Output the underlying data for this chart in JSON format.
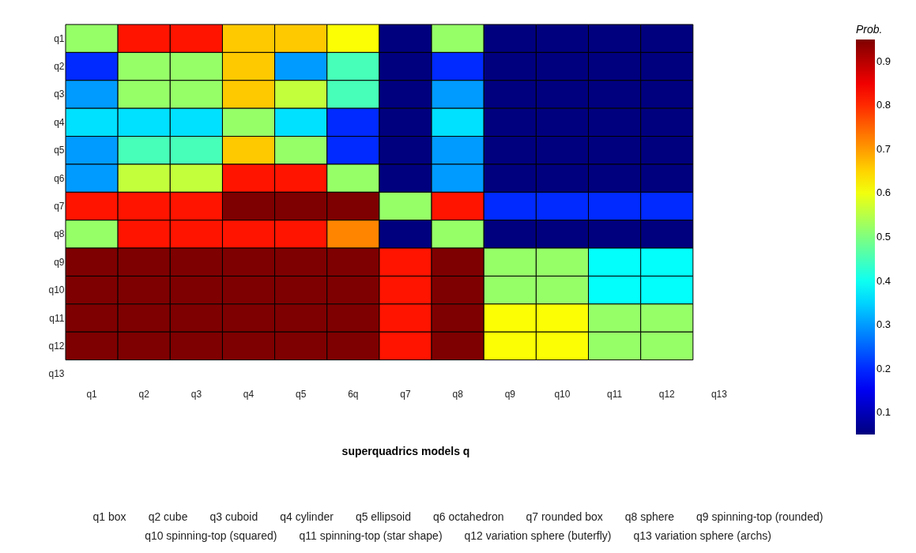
{
  "chart_data": {
    "type": "heatmap",
    "categories": [
      "q1",
      "q2",
      "q3",
      "q4",
      "q5",
      "6q",
      "q7",
      "q8",
      "q9",
      "q10",
      "q11",
      "q12",
      "q13"
    ],
    "y_categories": [
      "q1",
      "q2",
      "q3",
      "q4",
      "q5",
      "q6",
      "q7",
      "q8",
      "q9",
      "q10",
      "q11",
      "q12",
      "q13"
    ],
    "cells": [
      [
        0.52,
        0.82,
        0.82,
        0.66,
        0.66,
        0.61,
        0.05,
        0.52,
        0.05,
        0.05,
        0.05,
        0.05,
        null
      ],
      [
        0.2,
        0.52,
        0.52,
        0.66,
        0.3,
        0.45,
        0.05,
        0.2,
        0.05,
        0.05,
        0.05,
        0.05,
        null
      ],
      [
        0.3,
        0.52,
        0.52,
        0.66,
        0.56,
        0.45,
        0.05,
        0.3,
        0.05,
        0.05,
        0.05,
        0.05,
        null
      ],
      [
        0.36,
        0.36,
        0.36,
        0.52,
        0.36,
        0.2,
        0.05,
        0.36,
        0.05,
        0.05,
        0.05,
        0.05,
        null
      ],
      [
        0.3,
        0.45,
        0.45,
        0.66,
        0.52,
        0.2,
        0.05,
        0.3,
        0.05,
        0.05,
        0.05,
        0.05,
        null
      ],
      [
        0.3,
        0.56,
        0.56,
        0.82,
        0.82,
        0.52,
        0.05,
        0.3,
        0.05,
        0.05,
        0.05,
        0.05,
        null
      ],
      [
        0.82,
        0.82,
        0.82,
        0.95,
        0.95,
        0.95,
        0.52,
        0.82,
        0.2,
        0.2,
        0.2,
        0.2,
        null
      ],
      [
        0.52,
        0.82,
        0.82,
        0.82,
        0.82,
        0.72,
        0.05,
        0.52,
        0.05,
        0.05,
        0.05,
        0.05,
        null
      ],
      [
        0.95,
        0.95,
        0.95,
        0.95,
        0.95,
        0.95,
        0.82,
        0.95,
        0.52,
        0.52,
        0.39,
        0.39,
        null
      ],
      [
        0.95,
        0.95,
        0.95,
        0.95,
        0.95,
        0.95,
        0.82,
        0.95,
        0.52,
        0.52,
        0.39,
        0.39,
        null
      ],
      [
        0.95,
        0.95,
        0.95,
        0.95,
        0.95,
        0.95,
        0.82,
        0.95,
        0.61,
        0.61,
        0.52,
        0.52,
        null
      ],
      [
        0.95,
        0.95,
        0.95,
        0.95,
        0.95,
        0.95,
        0.82,
        0.95,
        0.61,
        0.61,
        0.52,
        0.52,
        null
      ],
      [
        null,
        null,
        null,
        null,
        null,
        null,
        null,
        null,
        null,
        null,
        null,
        null,
        null
      ]
    ],
    "clabel": "Prob.",
    "clim": [
      0.05,
      0.95
    ],
    "cticks": [
      0.1,
      0.2,
      0.3,
      0.4,
      0.5,
      0.6,
      0.7,
      0.8,
      0.9
    ],
    "xlabel": "superquadrics models q",
    "annotations": [
      "q1 box",
      "q2 cube",
      "q3 cuboid",
      "q4 cylinder",
      "q5 ellipsoid",
      "q6 octahedron",
      "q7 rounded box",
      "q8 sphere",
      "q9 spinning-top (rounded)",
      "q10 spinning-top (squared)",
      "q11 spinning-top (star shape)",
      "q12 variation sphere (buterfly)",
      "q13 variation sphere (archs)"
    ]
  }
}
